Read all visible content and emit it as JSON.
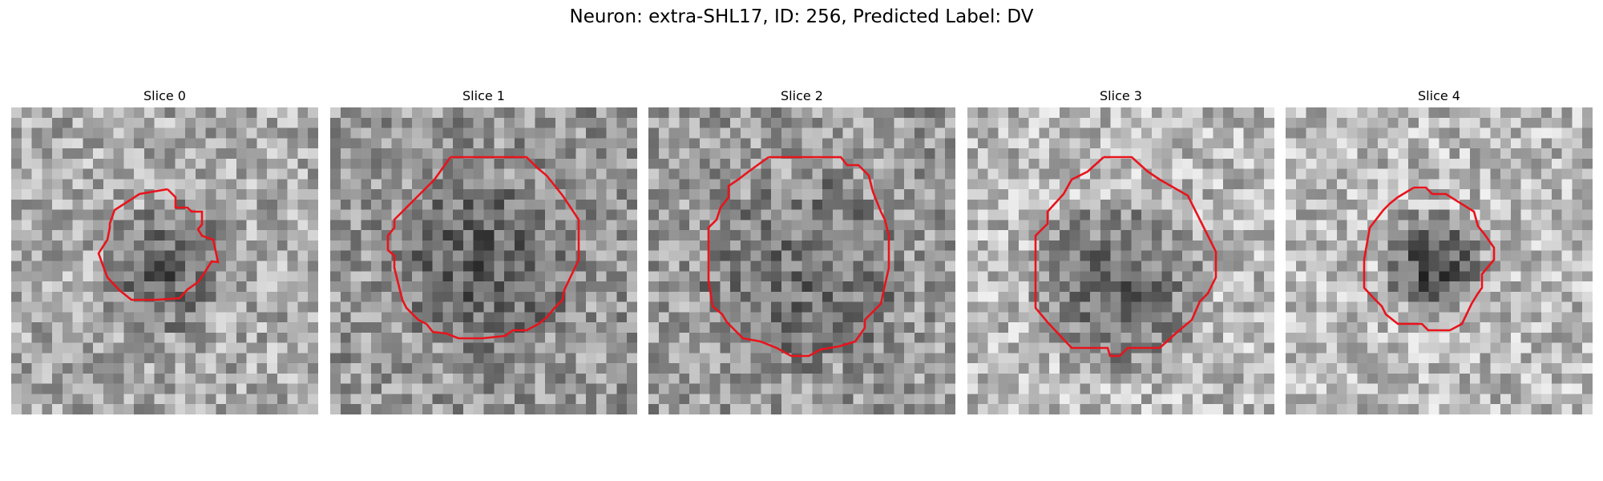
{
  "figure": {
    "title": "Neuron: extra-SHL17, ID: 256, Predicted Label: DV"
  },
  "panels": [
    {
      "title": "Slice 0"
    },
    {
      "title": "Slice 1"
    },
    {
      "title": "Slice 2"
    },
    {
      "title": "Slice 3"
    },
    {
      "title": "Slice 4"
    }
  ],
  "colors": {
    "contour": "#e8141c",
    "background": "#ffffff"
  }
}
